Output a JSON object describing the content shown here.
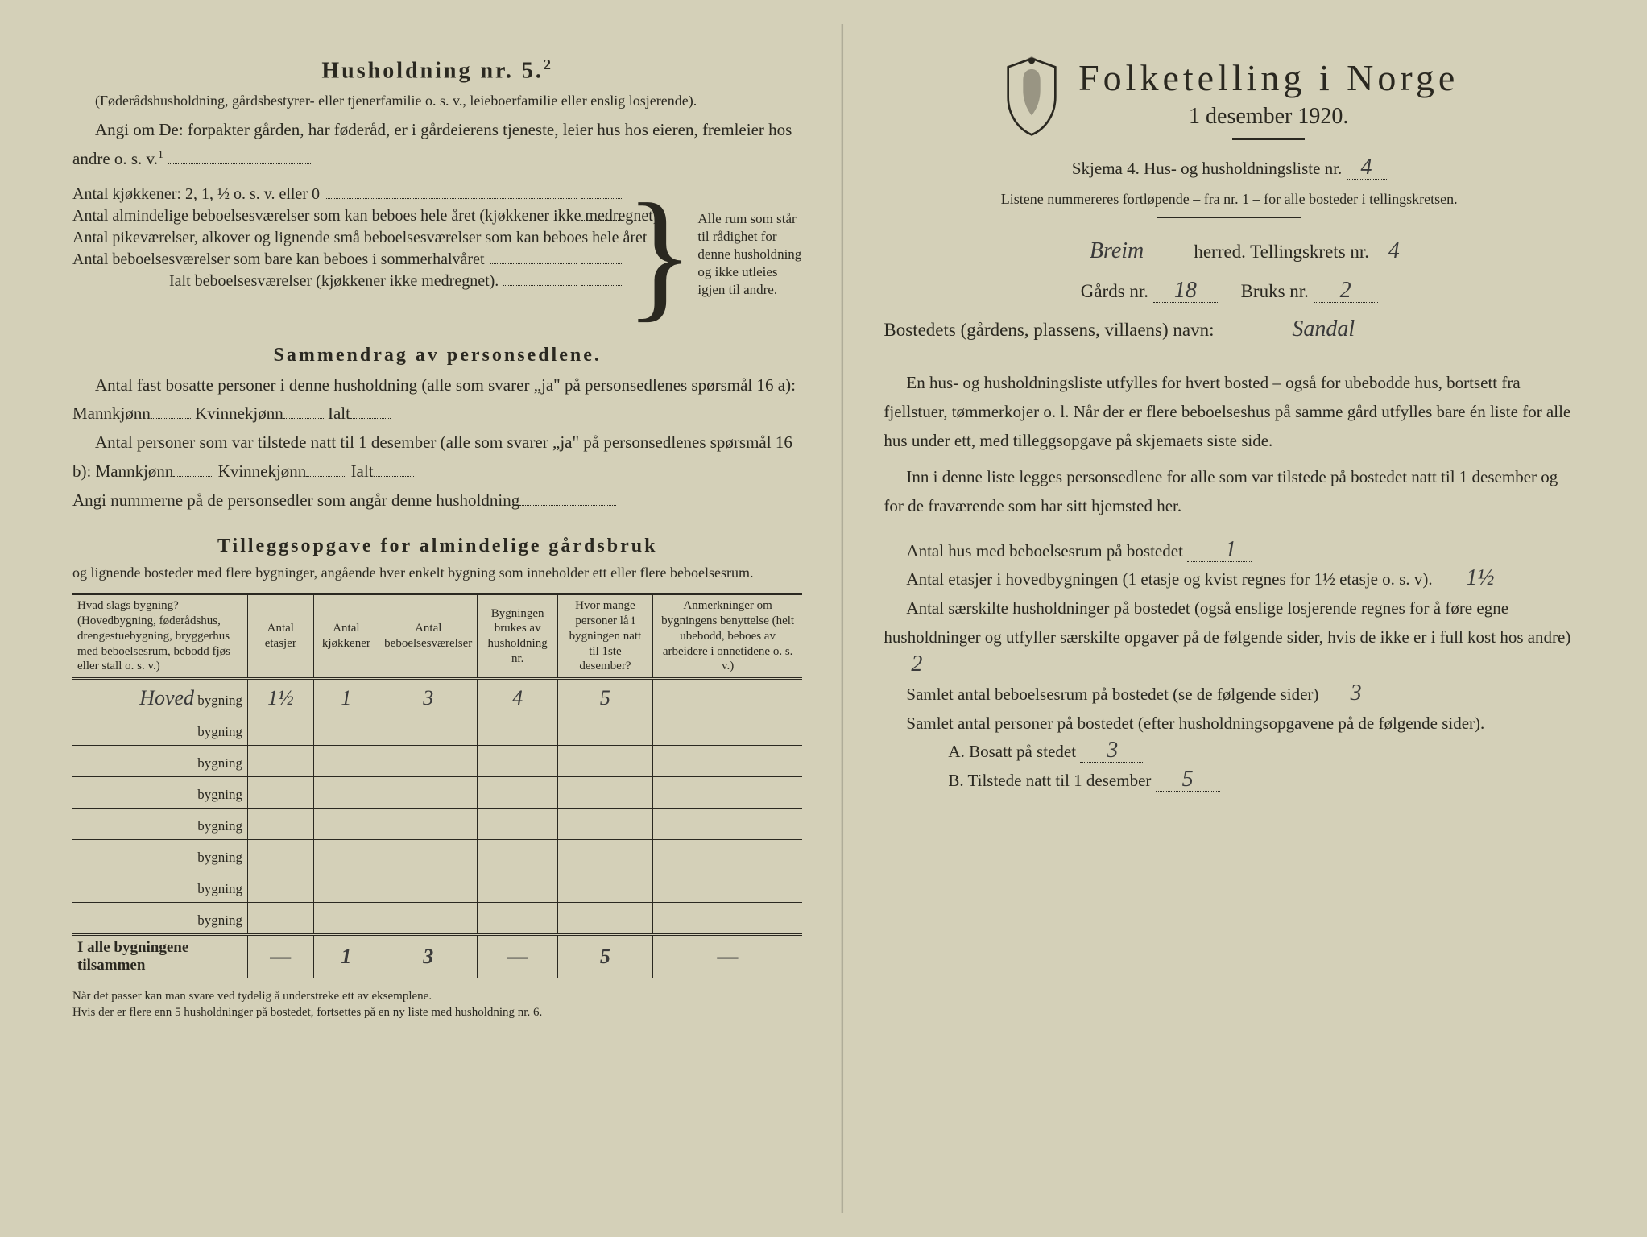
{
  "left": {
    "household_heading": "Husholdning nr. 5.",
    "household_sup": "2",
    "household_note": "(Føderådshusholdning, gårdsbestyrer- eller tjenerfamilie o. s. v., leieboerfamilie eller enslig losjerende).",
    "angi_line": "Angi om De:  forpakter gården, har føderåd, er i gårdeierens tjeneste, leier hus hos eieren, fremleier hos andre o. s. v.",
    "angi_sup": "1",
    "kitchens_label": "Antal kjøkkener: 2, 1, ½ o. s. v. eller 0",
    "rooms1": "Antal almindelige beboelsesværelser som kan beboes hele året (kjøkkener ikke medregnet).",
    "rooms2": "Antal pikeværelser, alkover og lignende små beboelsesværelser som kan beboes hele året",
    "rooms3": "Antal beboelsesværelser som bare kan beboes i sommerhalvåret",
    "rooms_total": "Ialt beboelsesværelser (kjøkkener ikke medregnet).",
    "brace_caption": "Alle rum som står til rådighet for denne husholdning og ikke utleies igjen til andre.",
    "summary_heading": "Sammendrag av personsedlene.",
    "summary_p1_a": "Antal fast bosatte personer i denne husholdning (alle som svarer „ja\" på personsedlenes spørsmål 16 a): Mannkjønn",
    "kvinnekjonn": "Kvinnekjønn",
    "ialt": "Ialt",
    "summary_p2_a": "Antal personer som var tilstede natt til 1 desember (alle som svarer „ja\" på personsedlenes spørsmål 16 b): Mannkjønn",
    "summary_p3": "Angi nummerne på de personsedler som angår denne husholdning",
    "tillegg_heading": "Tilleggsopgave for almindelige gårdsbruk",
    "tillegg_sub": "og lignende bosteder med flere bygninger, angående hver enkelt bygning som inneholder ett eller flere beboelsesrum.",
    "table": {
      "headers": [
        "Hvad slags bygning?\n(Hovedbygning, føderådshus, drengestuebygning, bryggerhus med beboelsesrum, bebodd fjøs eller stall o. s. v.)",
        "Antal etasjer",
        "Antal kjøkkener",
        "Antal beboelsesværelser",
        "Bygningen brukes av husholdning nr.",
        "Hvor mange personer lå i bygningen natt til 1ste desember?",
        "Anmerkninger om bygningens benyttelse (helt ubebodd, beboes av arbeidere i onnetidene o. s. v.)"
      ],
      "row_suffix": "bygning",
      "rows": [
        {
          "name": "Hoved",
          "etasjer": "1½",
          "kjokken": "1",
          "vaerelser": "3",
          "hushold": "4",
          "personer": "5",
          "anm": ""
        },
        {
          "name": "",
          "etasjer": "",
          "kjokken": "",
          "vaerelser": "",
          "hushold": "",
          "personer": "",
          "anm": ""
        },
        {
          "name": "",
          "etasjer": "",
          "kjokken": "",
          "vaerelser": "",
          "hushold": "",
          "personer": "",
          "anm": ""
        },
        {
          "name": "",
          "etasjer": "",
          "kjokken": "",
          "vaerelser": "",
          "hushold": "",
          "personer": "",
          "anm": ""
        },
        {
          "name": "",
          "etasjer": "",
          "kjokken": "",
          "vaerelser": "",
          "hushold": "",
          "personer": "",
          "anm": ""
        },
        {
          "name": "",
          "etasjer": "",
          "kjokken": "",
          "vaerelser": "",
          "hushold": "",
          "personer": "",
          "anm": ""
        },
        {
          "name": "",
          "etasjer": "",
          "kjokken": "",
          "vaerelser": "",
          "hushold": "",
          "personer": "",
          "anm": ""
        },
        {
          "name": "",
          "etasjer": "",
          "kjokken": "",
          "vaerelser": "",
          "hushold": "",
          "personer": "",
          "anm": ""
        }
      ],
      "footer_label": "I alle bygningene tilsammen",
      "footer": {
        "etasjer": "—",
        "kjokken": "1",
        "vaerelser": "3",
        "hushold": "—",
        "personer": "5",
        "anm": "—"
      }
    },
    "footnote": "Når det passer kan man svare ved tydelig å understreke ett av eksemplene.\nHvis der er flere enn 5 husholdninger på bostedet, fortsettes på en ny liste med husholdning nr. 6."
  },
  "right": {
    "title": "Folketelling i Norge",
    "subtitle": "1 desember 1920.",
    "skjema_label": "Skjema 4.  Hus- og husholdningsliste nr.",
    "skjema_nr": "4",
    "listene": "Listene nummereres fortløpende – fra nr. 1 – for alle bosteder i tellingskretsen.",
    "herred_value": "Breim",
    "herred_label": "herred.   Tellingskrets nr.",
    "krets_nr": "4",
    "gards_label": "Gårds nr.",
    "gards_nr": "18",
    "bruks_label": "Bruks nr.",
    "bruks_nr": "2",
    "bosted_label": "Bostedets (gårdens, plassens, villaens) navn:",
    "bosted_value": "Sandal",
    "para1": "En hus- og husholdningsliste utfylles for hvert bosted – også for ubebodde hus, bortsett fra fjellstuer, tømmerkojer o. l.  Når der er flere beboelseshus på samme gård utfylles bare én liste for alle hus under ett, med tilleggsopgave på skjemaets siste side.",
    "para2": "Inn i denne liste legges personsedlene for alle som var tilstede på bostedet natt til 1 desember og for de fraværende som har sitt hjemsted her.",
    "hus_label": "Antal hus med beboelsesrum på bostedet",
    "hus_value": "1",
    "etasjer_label_a": "Antal etasjer i hovedbygningen (1 etasje og kvist regnes for 1½ etasje o. s. v).",
    "etasjer_value": "1½",
    "saerskilte_a": "Antal særskilte husholdninger på bostedet (også enslige losjerende regnes for å føre egne husholdninger og utfyller særskilte opgaver på de følgende sider, hvis de ikke er i full kost hos andre)",
    "saerskilte_value": "2",
    "samlet_rum_label": "Samlet antal beboelsesrum på bostedet (se de følgende sider)",
    "samlet_rum_value": "3",
    "samlet_pers_label": "Samlet antal personer på bostedet (efter husholdningsopgavene på de følgende sider).",
    "bosatt_label": "A.  Bosatt på stedet",
    "bosatt_value": "3",
    "tilstede_label": "B.  Tilstede natt til 1 desember",
    "tilstede_value": "5"
  }
}
